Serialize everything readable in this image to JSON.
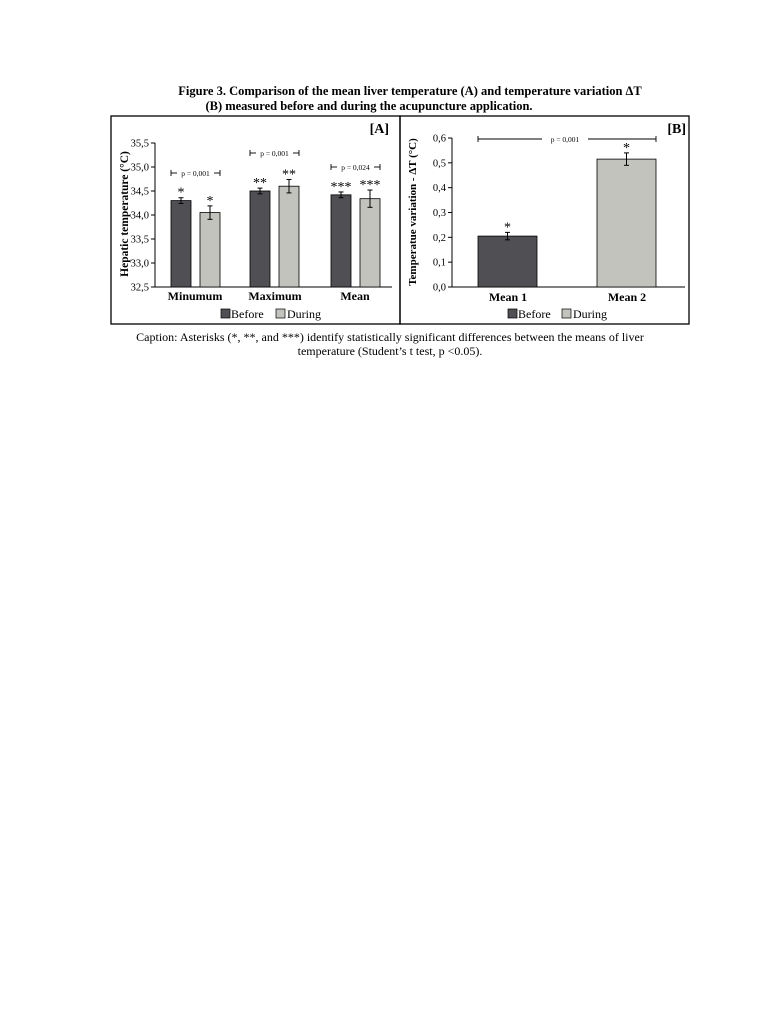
{
  "figure": {
    "title_prefix": "Figure 3",
    "title_line1": ".  Comparison of the mean liver temperature (A) and temperature variation ΔT",
    "title_line2": "(B) measured before and during the acupuncture application.",
    "caption_line1": "Caption: Asterisks (*, **, and ***) identify statistically significant differences between the means of liver",
    "caption_line2": "temperature (Student’s t test, p <0.05)."
  },
  "colors": {
    "before": "#505054",
    "during": "#c3c3be",
    "axis": "#000000"
  },
  "chart_data": [
    {
      "panel": "[A]",
      "type": "bar",
      "ylabel": "Hepatic temperature (°C)",
      "ylim": [
        32.5,
        35.5
      ],
      "yticks": [
        "32,5",
        "33,0",
        "33,5",
        "34,0",
        "34,5",
        "35,0",
        "35,5"
      ],
      "yticks_values": [
        32.5,
        33.0,
        33.5,
        34.0,
        34.5,
        35.0,
        35.5
      ],
      "categories": [
        "Minumum",
        "Maximum",
        "Mean"
      ],
      "series": [
        {
          "name": "Before",
          "values": [
            34.3,
            34.5,
            34.42
          ],
          "errors": [
            0.06,
            0.06,
            0.06
          ],
          "marks": [
            "*",
            "**",
            "***"
          ]
        },
        {
          "name": "During",
          "values": [
            34.05,
            34.6,
            34.34
          ],
          "errors": [
            0.14,
            0.14,
            0.18
          ],
          "marks": [
            "*",
            "**",
            "***"
          ]
        }
      ],
      "pvalues": [
        "p = 0,001",
        "p = 0,001",
        "p = 0,024"
      ],
      "legend": "bottom"
    },
    {
      "panel": "[B]",
      "type": "bar",
      "ylabel": "Temperatue variation - ΔT (°C)",
      "ylim": [
        0.0,
        0.6
      ],
      "yticks": [
        "0,0",
        "0,1",
        "0,2",
        "0,3",
        "0,4",
        "0,5",
        "0,6"
      ],
      "yticks_values": [
        0.0,
        0.1,
        0.2,
        0.3,
        0.4,
        0.5,
        0.6
      ],
      "categories": [
        "Mean 1",
        "Mean 2"
      ],
      "series": [
        {
          "name": "Before",
          "values": [
            0.205,
            null
          ],
          "errors": [
            0.015,
            null
          ],
          "marks": [
            "*",
            null
          ]
        },
        {
          "name": "During",
          "values": [
            null,
            0.515
          ],
          "errors": [
            null,
            0.025
          ],
          "marks": [
            null,
            "*"
          ]
        }
      ],
      "pvalues": [
        "p = 0,001"
      ],
      "legend": "bottom"
    }
  ]
}
